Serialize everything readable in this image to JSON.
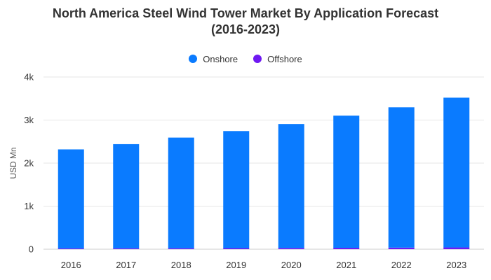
{
  "chart_data": {
    "type": "bar",
    "stacked": true,
    "title": "North America Steel Wind Tower Market By Application Forecast (2016-2023)",
    "title_lines": [
      "North America Steel Wind Tower Market By Application Forecast",
      "(2016-2023)"
    ],
    "categories": [
      "2016",
      "2017",
      "2018",
      "2019",
      "2020",
      "2021",
      "2022",
      "2023"
    ],
    "series": [
      {
        "name": "Onshore",
        "color": "#0a7bff",
        "values": [
          2300,
          2420,
          2570,
          2720,
          2880,
          3070,
          3260,
          3480
        ]
      },
      {
        "name": "Offshore",
        "color": "#6f19f2",
        "values": [
          18,
          20,
          22,
          24,
          28,
          32,
          36,
          40
        ]
      }
    ],
    "xlabel": "",
    "ylabel": "USD Mn",
    "ylim": [
      0,
      4000
    ],
    "yticks": [
      0,
      1000,
      2000,
      3000,
      4000
    ],
    "ytick_labels": [
      "0",
      "1k",
      "2k",
      "3k",
      "4k"
    ],
    "grid": true,
    "legend_position": "top-center"
  }
}
